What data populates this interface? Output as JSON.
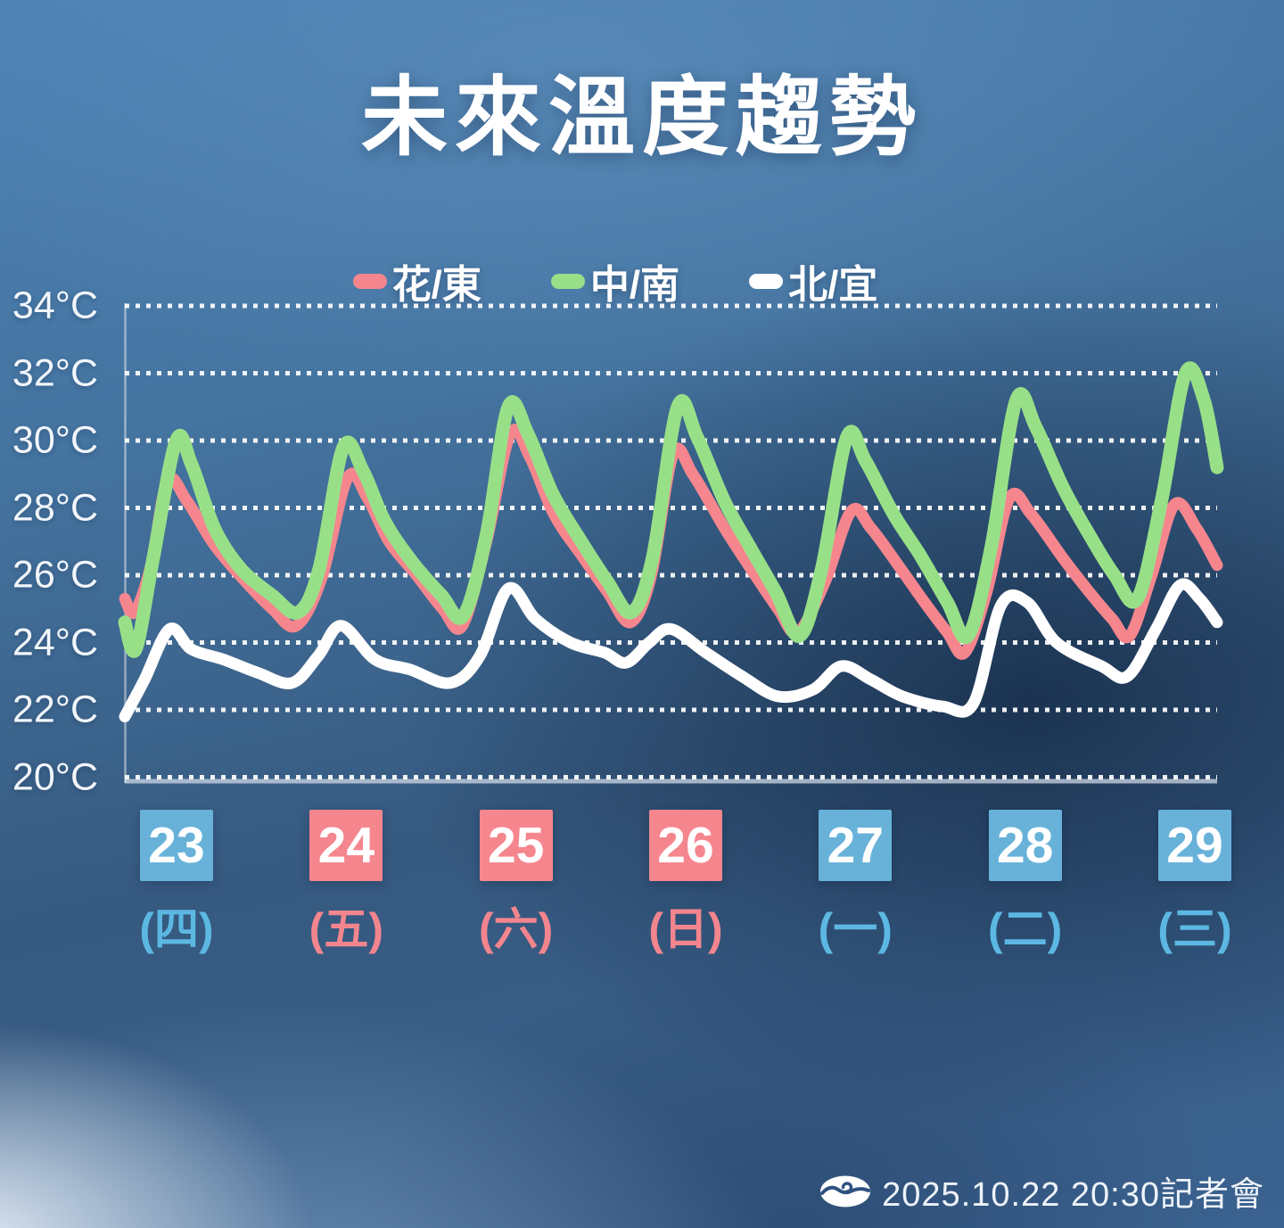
{
  "title": "未來溫度趨勢",
  "legend": [
    {
      "key": "hua-dong",
      "label": "花/東",
      "color": "#f5868e"
    },
    {
      "key": "zhong-nan",
      "label": "中/南",
      "color": "#98e088"
    },
    {
      "key": "bei-yi",
      "label": "北/宜",
      "color": "#ffffff"
    }
  ],
  "footer": {
    "timestamp": "2025.10.22 20:30記者會",
    "logo": "cwa-logo"
  },
  "palette": {
    "day_blue_box": "#68b2d9",
    "day_pink_box": "#f5868e",
    "day_blue_text": "#5cb8e2",
    "day_pink_text": "#f3858e",
    "grid_dot": "#ffffff",
    "baseline": "#cfd9e6"
  },
  "chart_data": {
    "type": "line",
    "title": "未來溫度趨勢",
    "xlabel": "",
    "ylabel": "°C",
    "ylim": [
      20,
      34
    ],
    "grid": "horizontal dotted",
    "legend_position": "top",
    "y_axis": {
      "ticks": [
        {
          "value": 34,
          "label": "34°C"
        },
        {
          "value": 32,
          "label": "32°C"
        },
        {
          "value": 30,
          "label": "30°C"
        },
        {
          "value": 28,
          "label": "28°C"
        },
        {
          "value": 26,
          "label": "26°C"
        },
        {
          "value": 24,
          "label": "24°C"
        },
        {
          "value": 22,
          "label": "22°C"
        },
        {
          "value": 20,
          "label": "20°C"
        }
      ]
    },
    "x_axis": {
      "days": [
        {
          "date": "23",
          "weekday": "(四)",
          "color_key": "blue"
        },
        {
          "date": "24",
          "weekday": "(五)",
          "color_key": "pink"
        },
        {
          "date": "25",
          "weekday": "(六)",
          "color_key": "pink"
        },
        {
          "date": "26",
          "weekday": "(日)",
          "color_key": "pink"
        },
        {
          "date": "27",
          "weekday": "(一)",
          "color_key": "blue"
        },
        {
          "date": "28",
          "weekday": "(二)",
          "color_key": "blue"
        },
        {
          "date": "29",
          "weekday": "(三)",
          "color_key": "blue"
        }
      ],
      "x_unit": "fraction of the Oct 23-29 span (0 = chart left edge, 1 = right edge)"
    },
    "series": [
      {
        "name": "花/東",
        "key": "hua-dong",
        "color": "#f5868e",
        "line_width": 13,
        "points": [
          [
            0.0,
            25.3
          ],
          [
            0.009,
            24.9
          ],
          [
            0.024,
            26.3
          ],
          [
            0.039,
            28.8
          ],
          [
            0.057,
            28.2
          ],
          [
            0.082,
            26.9
          ],
          [
            0.108,
            25.9
          ],
          [
            0.135,
            25.0
          ],
          [
            0.157,
            24.5
          ],
          [
            0.18,
            25.9
          ],
          [
            0.204,
            28.9
          ],
          [
            0.222,
            28.3
          ],
          [
            0.242,
            27.0
          ],
          [
            0.267,
            26.0
          ],
          [
            0.291,
            25.0
          ],
          [
            0.309,
            24.5
          ],
          [
            0.331,
            27.0
          ],
          [
            0.353,
            30.2
          ],
          [
            0.371,
            29.5
          ],
          [
            0.393,
            27.8
          ],
          [
            0.418,
            26.6
          ],
          [
            0.442,
            25.5
          ],
          [
            0.463,
            24.6
          ],
          [
            0.482,
            26.0
          ],
          [
            0.502,
            29.6
          ],
          [
            0.52,
            29.0
          ],
          [
            0.549,
            27.4
          ],
          [
            0.573,
            26.2
          ],
          [
            0.598,
            25.0
          ],
          [
            0.616,
            24.3
          ],
          [
            0.641,
            25.8
          ],
          [
            0.665,
            27.9
          ],
          [
            0.683,
            27.4
          ],
          [
            0.708,
            26.3
          ],
          [
            0.732,
            25.2
          ],
          [
            0.753,
            24.3
          ],
          [
            0.769,
            23.7
          ],
          [
            0.789,
            25.5
          ],
          [
            0.81,
            28.3
          ],
          [
            0.83,
            27.8
          ],
          [
            0.859,
            26.5
          ],
          [
            0.883,
            25.5
          ],
          [
            0.904,
            24.7
          ],
          [
            0.92,
            24.2
          ],
          [
            0.94,
            26.0
          ],
          [
            0.961,
            28.1
          ],
          [
            0.981,
            27.4
          ],
          [
            1.0,
            26.3
          ]
        ]
      },
      {
        "name": "中/南",
        "key": "zhong-nan",
        "color": "#98e088",
        "line_width": 15,
        "points": [
          [
            0.0,
            24.6
          ],
          [
            0.01,
            23.8
          ],
          [
            0.026,
            26.5
          ],
          [
            0.047,
            30.0
          ],
          [
            0.061,
            29.3
          ],
          [
            0.082,
            27.4
          ],
          [
            0.106,
            26.2
          ],
          [
            0.135,
            25.4
          ],
          [
            0.159,
            24.9
          ],
          [
            0.178,
            26.2
          ],
          [
            0.2,
            29.8
          ],
          [
            0.218,
            29.1
          ],
          [
            0.238,
            27.6
          ],
          [
            0.263,
            26.4
          ],
          [
            0.29,
            25.4
          ],
          [
            0.31,
            24.8
          ],
          [
            0.331,
            27.2
          ],
          [
            0.351,
            31.0
          ],
          [
            0.369,
            30.2
          ],
          [
            0.392,
            28.4
          ],
          [
            0.418,
            27.0
          ],
          [
            0.442,
            25.8
          ],
          [
            0.464,
            24.9
          ],
          [
            0.483,
            26.5
          ],
          [
            0.506,
            31.0
          ],
          [
            0.524,
            30.1
          ],
          [
            0.549,
            28.2
          ],
          [
            0.573,
            26.8
          ],
          [
            0.596,
            25.5
          ],
          [
            0.618,
            24.2
          ],
          [
            0.638,
            26.2
          ],
          [
            0.661,
            30.1
          ],
          [
            0.678,
            29.4
          ],
          [
            0.704,
            27.8
          ],
          [
            0.728,
            26.6
          ],
          [
            0.753,
            25.2
          ],
          [
            0.772,
            24.2
          ],
          [
            0.793,
            26.8
          ],
          [
            0.816,
            31.2
          ],
          [
            0.834,
            30.4
          ],
          [
            0.859,
            28.6
          ],
          [
            0.883,
            27.2
          ],
          [
            0.906,
            26.0
          ],
          [
            0.927,
            25.3
          ],
          [
            0.949,
            28.2
          ],
          [
            0.971,
            32.0
          ],
          [
            0.988,
            31.2
          ],
          [
            1.0,
            29.2
          ]
        ]
      },
      {
        "name": "北/宜",
        "key": "bei-yi",
        "color": "#ffffff",
        "line_width": 13,
        "points": [
          [
            0.0,
            21.8
          ],
          [
            0.018,
            22.9
          ],
          [
            0.041,
            24.4
          ],
          [
            0.061,
            23.8
          ],
          [
            0.09,
            23.5
          ],
          [
            0.122,
            23.1
          ],
          [
            0.153,
            22.8
          ],
          [
            0.177,
            23.6
          ],
          [
            0.198,
            24.5
          ],
          [
            0.229,
            23.5
          ],
          [
            0.261,
            23.2
          ],
          [
            0.298,
            22.8
          ],
          [
            0.325,
            23.6
          ],
          [
            0.351,
            25.6
          ],
          [
            0.376,
            24.7
          ],
          [
            0.408,
            24.0
          ],
          [
            0.439,
            23.7
          ],
          [
            0.459,
            23.4
          ],
          [
            0.48,
            24.0
          ],
          [
            0.5,
            24.4
          ],
          [
            0.532,
            23.7
          ],
          [
            0.565,
            23.0
          ],
          [
            0.598,
            22.4
          ],
          [
            0.63,
            22.6
          ],
          [
            0.656,
            23.3
          ],
          [
            0.683,
            22.9
          ],
          [
            0.712,
            22.4
          ],
          [
            0.749,
            22.1
          ],
          [
            0.777,
            22.2
          ],
          [
            0.802,
            25.1
          ],
          [
            0.826,
            25.2
          ],
          [
            0.853,
            24.0
          ],
          [
            0.894,
            23.3
          ],
          [
            0.918,
            23.0
          ],
          [
            0.944,
            24.4
          ],
          [
            0.966,
            25.7
          ],
          [
            0.984,
            25.3
          ],
          [
            1.0,
            24.6
          ]
        ]
      }
    ]
  }
}
